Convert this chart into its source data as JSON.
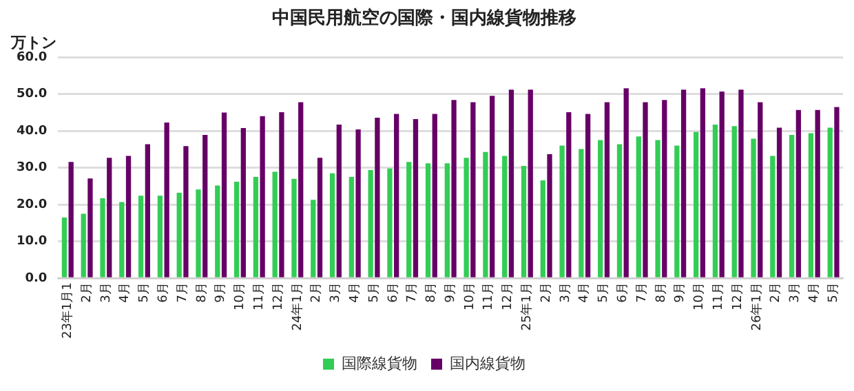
{
  "chart_data": {
    "type": "bar",
    "title": "中国民用航空の国際・国内線貨物推移",
    "ylabel": "万トン",
    "categories": [
      "23年1月1",
      "2月",
      "3月",
      "4月",
      "5月",
      "6月",
      "7月",
      "8月",
      "9月",
      "10月",
      "11月",
      "12月",
      "24年1月",
      "2月",
      "3月",
      "4月",
      "5月",
      "6月",
      "7月",
      "8月",
      "9月",
      "10月",
      "11月",
      "12月",
      "25年1月",
      "2月",
      "3月",
      "4月",
      "5月",
      "6月",
      "7月",
      "8月",
      "9月",
      "10月",
      "11月",
      "12月",
      "26年1月",
      "2月",
      "3月",
      "4月",
      "5月"
    ],
    "series": [
      {
        "name": "国際線貨物",
        "color": "#33cc55",
        "values": [
          16.5,
          17.5,
          21.7,
          20.7,
          22.4,
          22.4,
          23.2,
          24.1,
          25.2,
          26.2,
          27.5,
          28.9,
          27.0,
          21.3,
          28.5,
          27.5,
          29.4,
          29.8,
          31.6,
          31.2,
          31.2,
          32.7,
          34.3,
          33.2,
          30.5,
          26.6,
          36.0,
          35.1,
          37.5,
          36.4,
          38.5,
          37.5,
          36.0,
          39.7,
          41.7,
          41.3,
          37.9,
          33.2,
          38.9,
          39.4,
          40.9
        ]
      },
      {
        "name": "国内線貨物",
        "color": "#660066",
        "values": [
          31.6,
          27.1,
          32.7,
          33.2,
          36.4,
          42.3,
          35.9,
          38.9,
          45.0,
          40.8,
          44.0,
          45.1,
          47.8,
          32.7,
          41.7,
          40.4,
          43.6,
          44.6,
          43.2,
          44.6,
          48.4,
          47.8,
          49.5,
          51.2,
          51.2,
          33.7,
          45.1,
          44.6,
          47.8,
          51.6,
          47.8,
          48.4,
          51.2,
          51.6,
          50.7,
          51.2,
          47.8,
          40.9,
          45.7,
          45.7,
          46.5
        ]
      }
    ],
    "ylim": [
      0,
      60
    ],
    "yticks": [
      {
        "value": 0,
        "label": "0.0"
      },
      {
        "value": 10,
        "label": "10.0"
      },
      {
        "value": 20,
        "label": "20.0"
      },
      {
        "value": 30,
        "label": "30.0"
      },
      {
        "value": 40,
        "label": "40.0"
      },
      {
        "value": 50,
        "label": "50.0"
      },
      {
        "value": 60,
        "label": "60.0"
      }
    ],
    "grid": "y",
    "legend": "bottom"
  }
}
